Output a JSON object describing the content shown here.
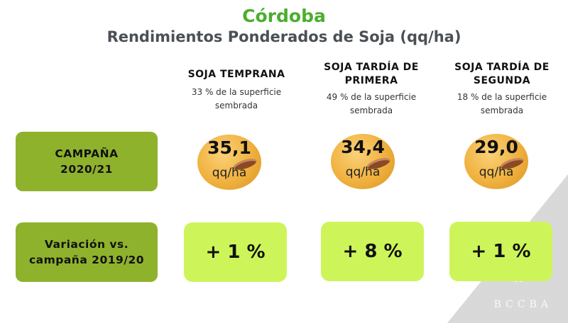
{
  "header": {
    "title": "Córdoba",
    "subtitle": "Rendimientos Ponderados de Soja (qq/ha)"
  },
  "colors": {
    "title": "#4bae2e",
    "row_label_box": "#8fb22c",
    "variation_box": "#cdf55a",
    "bean": "#f0b13e"
  },
  "columns": [
    {
      "name_line1": "SOJA TEMPRANA",
      "name_line2": "",
      "note_line1": "33 % de la superficie",
      "note_line2": "sembrada",
      "yield": "35,1",
      "unit": "qq/ha",
      "variation": "+ 1 %"
    },
    {
      "name_line1": "SOJA TARDÍA DE",
      "name_line2": "PRIMERA",
      "note_line1": "49 % de la superficie",
      "note_line2": "sembrada",
      "yield": "34,4",
      "unit": "qq/ha",
      "variation": "+ 8 %"
    },
    {
      "name_line1": "SOJA TARDÍA DE",
      "name_line2": "SEGUNDA",
      "note_line1": "18 % de la superficie",
      "note_line2": "sembrada",
      "yield": "29,0",
      "unit": "qq/ha",
      "variation": "+ 1 %"
    }
  ],
  "rows": {
    "campaign_line1": "CAMPAÑA",
    "campaign_line2": "2020/21",
    "variation_line1": "Variación vs.",
    "variation_line2": "campaña 2019/20"
  },
  "watermark": {
    "text": "BCCBA",
    "icon": "wheat-icon"
  }
}
